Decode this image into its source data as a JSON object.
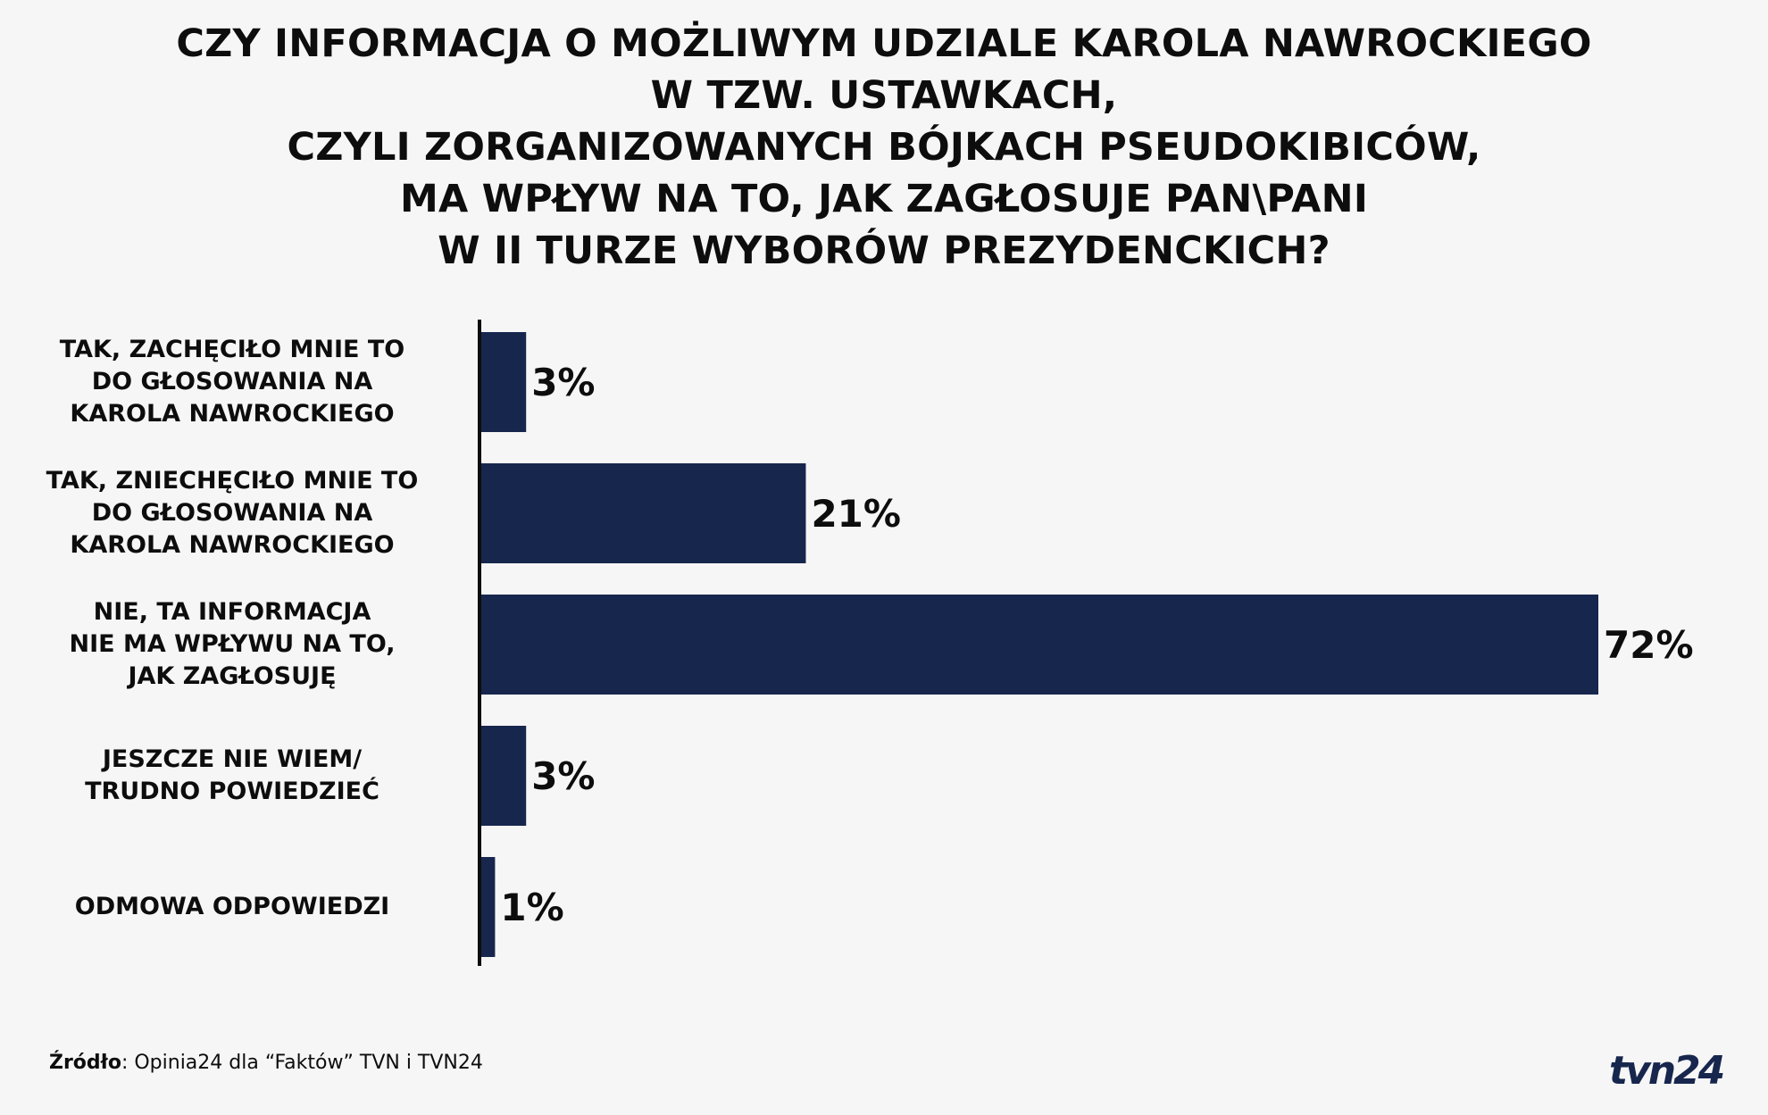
{
  "title_lines": [
    "CZY INFORMACJA O MOŻLIWYM UDZIALE KAROLA NAWROCKIEGO",
    "W TZW. USTAWKACH,",
    "CZYLI ZORGANIZOWANYCH BÓJKACH PSEUDOKIBICÓW,",
    "MA WPŁYW NA TO, JAK ZAGŁOSUJE PAN\\PANI",
    "W II TURZE WYBORÓW PREZYDENCKICH?"
  ],
  "chart_data": {
    "type": "bar",
    "orientation": "horizontal",
    "categories": [
      [
        "TAK, ZACHĘCIŁO MNIE TO",
        "DO GŁOSOWANIA NA",
        "KAROLA NAWROCKIEGO"
      ],
      [
        "TAK, ZNIECHĘCIŁO MNIE TO",
        "DO GŁOSOWANIA NA",
        "KAROLA NAWROCKIEGO"
      ],
      [
        "NIE, TA INFORMACJA",
        "NIE MA WPŁYWU NA TO,",
        "JAK ZAGŁOSUJĘ"
      ],
      [
        "JESZCZE NIE WIEM/",
        "TRUDNO POWIEDZIEĆ"
      ],
      [
        "ODMOWA ODPOWIEDZI"
      ]
    ],
    "values": [
      3,
      21,
      72,
      3,
      1
    ],
    "value_labels": [
      "3%",
      "21%",
      "72%",
      "3%",
      "1%"
    ],
    "unit": "%",
    "bar_color": "#17264d"
  },
  "source": {
    "label": "Źródło",
    "text": ": Opinia24 dla “Faktów” TVN i TVN24"
  },
  "logo": {
    "text": "tvn24",
    "color": "#17264d"
  }
}
